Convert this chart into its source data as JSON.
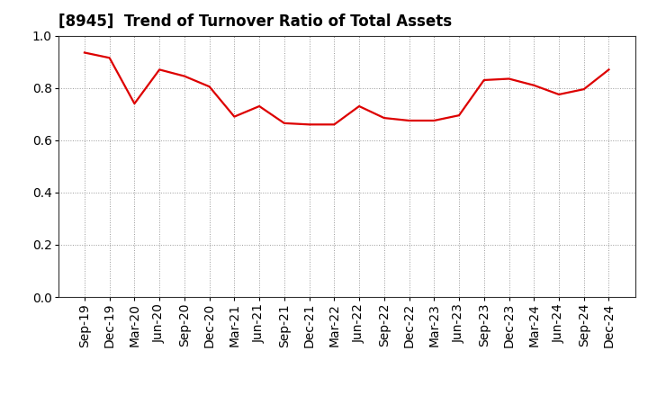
{
  "title": "[8945]  Trend of Turnover Ratio of Total Assets",
  "x_labels": [
    "Sep-19",
    "Dec-19",
    "Mar-20",
    "Jun-20",
    "Sep-20",
    "Dec-20",
    "Mar-21",
    "Jun-21",
    "Sep-21",
    "Dec-21",
    "Mar-22",
    "Jun-22",
    "Sep-22",
    "Dec-22",
    "Mar-23",
    "Jun-23",
    "Sep-23",
    "Dec-23",
    "Mar-24",
    "Jun-24",
    "Sep-24",
    "Dec-24"
  ],
  "y_values": [
    0.935,
    0.915,
    0.74,
    0.87,
    0.845,
    0.805,
    0.69,
    0.73,
    0.665,
    0.66,
    0.66,
    0.73,
    0.685,
    0.675,
    0.675,
    0.695,
    0.83,
    0.835,
    0.81,
    0.775,
    0.795,
    0.87
  ],
  "line_color": "#dd0000",
  "line_width": 1.6,
  "ylim": [
    0.0,
    1.0
  ],
  "yticks": [
    0.0,
    0.2,
    0.4,
    0.6,
    0.8,
    1.0
  ],
  "background_color": "#ffffff",
  "grid_color": "#999999",
  "title_fontsize": 12,
  "tick_fontsize": 10,
  "ylabel_fontsize": 10
}
